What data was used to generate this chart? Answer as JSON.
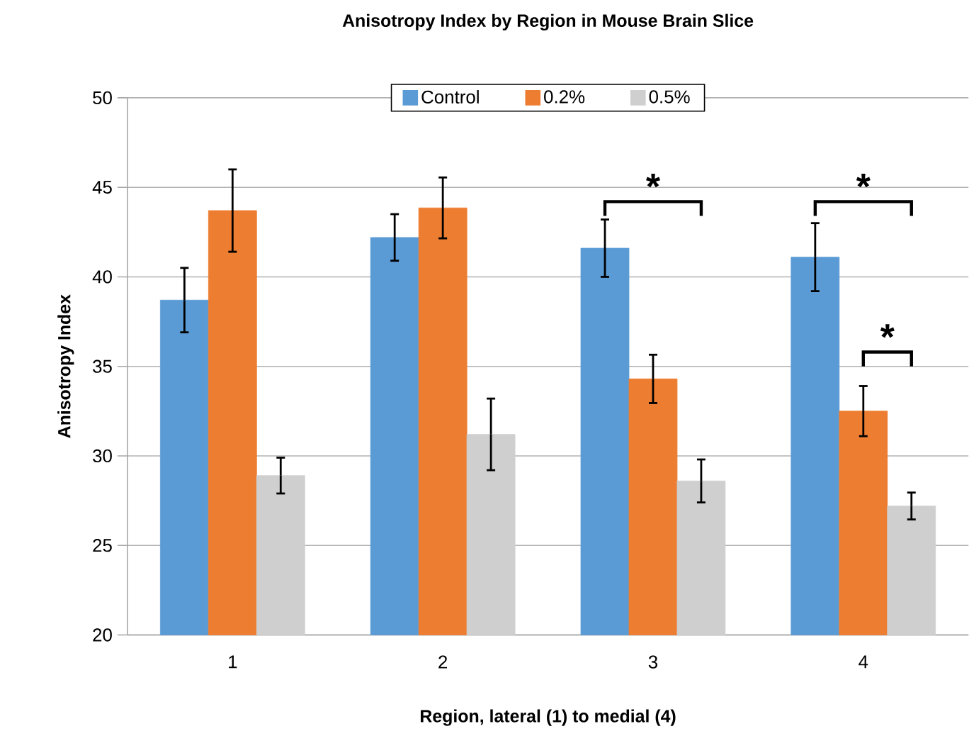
{
  "chart_data": {
    "type": "bar",
    "title": "Anisotropy Index by Region in Mouse Brain Slice",
    "xlabel": "Region, lateral (1) to medial (4)",
    "ylabel": "Anisotropy Index",
    "categories": [
      "1",
      "2",
      "3",
      "4"
    ],
    "series": [
      {
        "name": "Control",
        "color": "#5b9bd5",
        "values": [
          38.7,
          42.2,
          41.6,
          41.1
        ],
        "errors": [
          1.8,
          1.3,
          1.6,
          1.9
        ]
      },
      {
        "name": "0.2%",
        "color": "#ed7d31",
        "values": [
          43.7,
          43.85,
          34.3,
          32.5
        ],
        "errors": [
          2.3,
          1.7,
          1.35,
          1.4
        ]
      },
      {
        "name": "0.5%",
        "color": "#cfcfcf",
        "values": [
          28.9,
          31.2,
          28.6,
          27.2
        ],
        "errors": [
          1.0,
          2.0,
          1.2,
          0.75
        ]
      }
    ],
    "ylim": [
      20,
      50
    ],
    "yticks": [
      20,
      25,
      30,
      35,
      40,
      45,
      50
    ],
    "grid": "y",
    "legend": "top",
    "annotations": [
      "*",
      "*",
      "*"
    ]
  }
}
